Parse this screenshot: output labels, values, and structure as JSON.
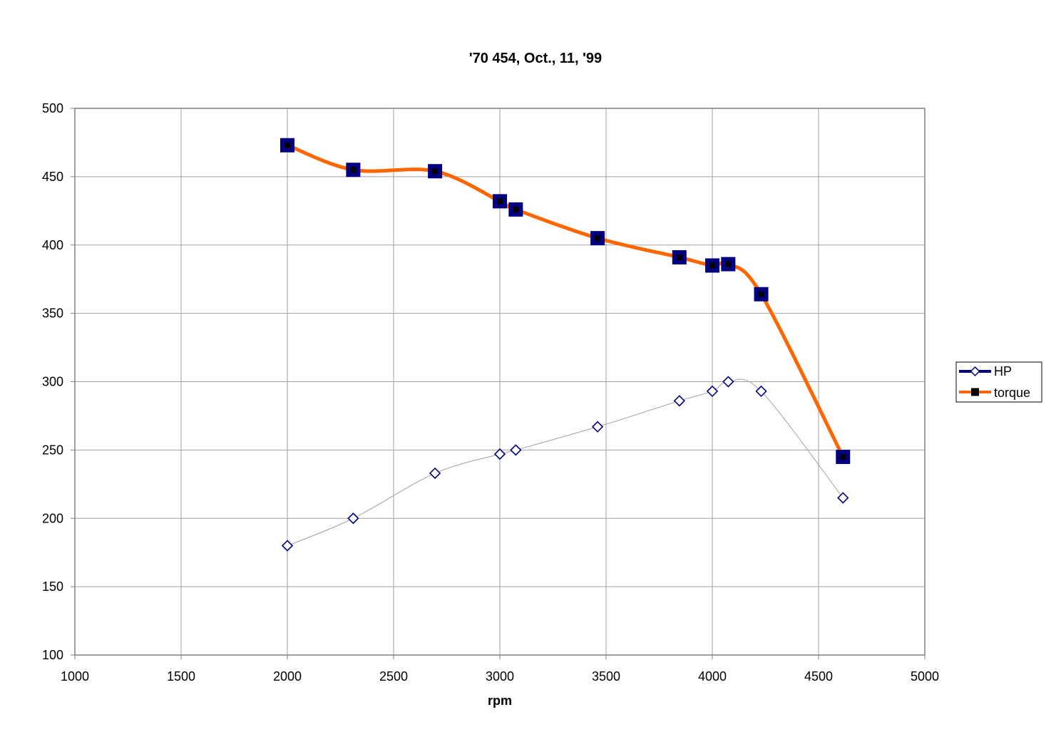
{
  "chart_data": {
    "type": "line",
    "title": "'70 454, Oct., 11, '99",
    "xlabel": "rpm",
    "ylabel": "",
    "xlim": [
      1000,
      5000
    ],
    "ylim": [
      100,
      500
    ],
    "x_ticks": [
      "1000",
      "1500",
      "2000",
      "2500",
      "3000",
      "3500",
      "4000",
      "4500",
      "5000"
    ],
    "y_ticks": [
      "100",
      "150",
      "200",
      "250",
      "300",
      "350",
      "400",
      "450",
      "500"
    ],
    "grid": true,
    "legend_position": "right",
    "series": [
      {
        "name": "HP",
        "color": "#000080",
        "line_color": "#a0a0a0",
        "marker": "diamond",
        "x": [
          2000,
          2310,
          2695,
          3000,
          3075,
          3460,
          3845,
          4000,
          4075,
          4230,
          4615
        ],
        "y": [
          180,
          200,
          233,
          247,
          250,
          267,
          286,
          293,
          300,
          293,
          215
        ]
      },
      {
        "name": "torque",
        "color": "#ff6600",
        "marker_color": "#000080",
        "marker": "square",
        "x": [
          2000,
          2310,
          2695,
          3000,
          3075,
          3460,
          3845,
          4000,
          4075,
          4230,
          4615
        ],
        "y": [
          473,
          455,
          454,
          432,
          426,
          405,
          391,
          385,
          386,
          364,
          245
        ]
      }
    ]
  }
}
